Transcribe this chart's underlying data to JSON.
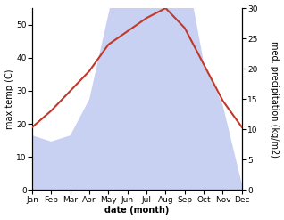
{
  "months": [
    "Jan",
    "Feb",
    "Mar",
    "Apr",
    "May",
    "Jun",
    "Jul",
    "Aug",
    "Sep",
    "Oct",
    "Nov",
    "Dec"
  ],
  "temperature": [
    19,
    24,
    30,
    36,
    44,
    48,
    52,
    55,
    49,
    38,
    27,
    19
  ],
  "precipitation": [
    9,
    8,
    9,
    15,
    29,
    43,
    53,
    54,
    38,
    21,
    14,
    1
  ],
  "temp_color": "#c0392b",
  "precip_fill_color": "#bfc9f0",
  "temp_ylim": [
    0,
    55
  ],
  "precip_ylim": [
    0,
    30
  ],
  "temp_yticks": [
    0,
    10,
    20,
    30,
    40,
    50
  ],
  "precip_yticks": [
    0,
    5,
    10,
    15,
    20,
    25,
    30
  ],
  "xlabel": "date (month)",
  "ylabel_left": "max temp (C)",
  "ylabel_right": "med. precipitation (kg/m2)",
  "label_fontsize": 7,
  "tick_fontsize": 6.5,
  "line_width": 1.5
}
